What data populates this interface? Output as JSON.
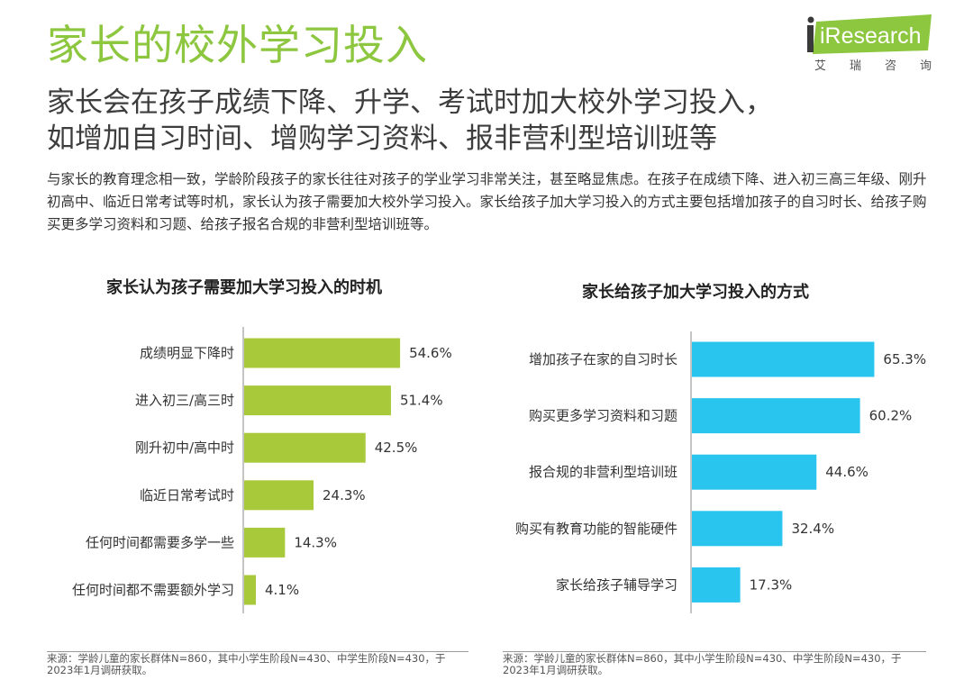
{
  "header": {
    "title": "家长的校外学习投入",
    "subtitle_line1": "家长会在孩子成绩下降、升学、考试时加大校外学习投入，",
    "subtitle_line2": "如增加自习时间、增购学习资料、报非营利型培训班等",
    "description": "与家长的教育理念相一致，学龄阶段孩子的家长往往对孩子的学业学习非常关注，甚至略显焦虑。在孩子在成绩下降、进入初三高三年级、刚升初高中、临近日常考试等时机，家长认为孩子需要加大校外学习投入。家长给孩子加大学习投入的方式主要包括增加孩子的自习时长、给孩子购买更多学习资料和习题、给孩子报名合规的非营利型培训班等。"
  },
  "logo": {
    "text": "iResearch",
    "subtitle_chars": [
      "艾",
      "瑞",
      "咨",
      "询"
    ],
    "color": "#8dc63f"
  },
  "chart_data": [
    {
      "type": "bar",
      "orientation": "horizontal",
      "title": "家长认为孩子需要加大学习投入的时机",
      "categories": [
        "成绩明显下降时",
        "进入初三/高三时",
        "刚升初中/高中时",
        "临近日常考试时",
        "任何时间都需要多学一些",
        "任何时间都不需要额外学习"
      ],
      "values": [
        54.6,
        51.4,
        42.5,
        24.3,
        14.3,
        4.1
      ],
      "value_labels": [
        "54.6%",
        "51.4%",
        "42.5%",
        "24.3%",
        "14.3%",
        "4.1%"
      ],
      "unit": "%",
      "color": "#a8c93a",
      "grid": false,
      "source": "来源：学龄儿童的家长群体N=860，其中小学生阶段N=430、中学生阶段N=430，于2023年1月调研获取。"
    },
    {
      "type": "bar",
      "orientation": "horizontal",
      "title": "家长给孩子加大学习投入的方式",
      "categories": [
        "增加孩子在家的自习时长",
        "购买更多学习资料和习题",
        "报合规的非营利型培训班",
        "购买有教育功能的智能硬件",
        "家长给孩子辅导学习"
      ],
      "values": [
        65.3,
        60.2,
        44.6,
        32.4,
        17.3
      ],
      "value_labels": [
        "65.3%",
        "60.2%",
        "44.6%",
        "32.4%",
        "17.3%"
      ],
      "unit": "%",
      "color": "#29c5ee",
      "grid": false,
      "source": "来源：学龄儿童的家长群体N=860，其中小学生阶段N=430、中学生阶段N=430，于2023年1月调研获取。"
    }
  ]
}
